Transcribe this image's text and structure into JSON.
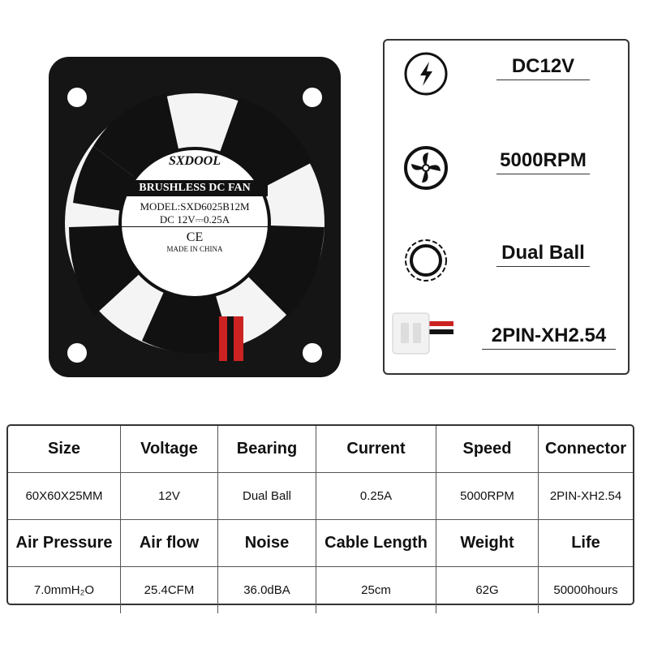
{
  "fan_label": {
    "brand": "SXDOOL",
    "line1": "BRUSHLESS DC FAN",
    "line2": "MODEL:SXD6025B12M",
    "line3": "DC 12V⎓0.25A",
    "mark": "CE",
    "origin": "MADE IN CHINA"
  },
  "specs": [
    {
      "icon": "lightning-icon",
      "value": "DC12V"
    },
    {
      "icon": "fan-icon",
      "value": "5000RPM"
    },
    {
      "icon": "bearing-icon",
      "value": "Dual Ball"
    },
    {
      "icon": "connector-icon",
      "value": "2PIN-XH2.54"
    }
  ],
  "table": {
    "rows": [
      [
        "Size",
        "Voltage",
        "Bearing",
        "Current",
        "Speed",
        "Connector"
      ],
      [
        "60X60X25MM",
        "12V",
        "Dual Ball",
        "0.25A",
        "5000RPM",
        "2PIN-XH2.54"
      ],
      [
        "Air Pressure",
        "Air flow",
        "Noise",
        "Cable Length",
        "Weight",
        "Life"
      ],
      [
        "7.0mmH₂O",
        "25.4CFM",
        "36.0dBA",
        "25cm",
        "62G",
        "50000hours"
      ]
    ]
  }
}
